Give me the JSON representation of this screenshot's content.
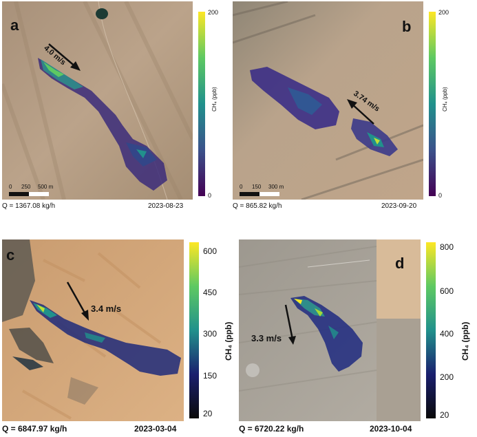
{
  "panels": [
    {
      "letter": "a",
      "q": "Q = 1367.08 kg/h",
      "date": "2023-08-23",
      "wind": "4.0 m/s",
      "scale": [
        "0",
        "250",
        "500 m"
      ],
      "cbar_ticks": [
        "200",
        "0"
      ],
      "cbar_label": "CH₄ (ppb)"
    },
    {
      "letter": "b",
      "q": "Q = 865.82 kg/h",
      "date": "2023-09-20",
      "wind": "3.74 m/s",
      "scale": [
        "0",
        "150",
        "300 m"
      ],
      "cbar_ticks": [
        "200",
        "0"
      ],
      "cbar_label": "CH₄ (ppb)"
    },
    {
      "letter": "c",
      "q": "Q = 6847.97 kg/h",
      "date": "2023-03-04",
      "wind": "3.4 m/s",
      "cbar_ticks": [
        "600",
        "450",
        "300",
        "150",
        "20"
      ],
      "cbar_label": "CH₄ (ppb)"
    },
    {
      "letter": "d",
      "q": "Q = 6720.22 kg/h",
      "date": "2023-10-04",
      "wind": "3.3 m/s",
      "cbar_ticks": [
        "800",
        "600",
        "400",
        "200",
        "20"
      ],
      "cbar_label": "CH₄ (ppb)"
    }
  ],
  "colors": {
    "viridis": [
      "#440154",
      "#3b528b",
      "#21918c",
      "#5ec962",
      "#fde725"
    ],
    "dark_viridis": [
      "#0a0a0a",
      "#1a1f6e",
      "#21918c",
      "#5ec962",
      "#fde725"
    ],
    "terrain_a": "#b39b7f",
    "terrain_b": "#b79f85",
    "desert_c": "#d4a77a",
    "terrain_d": "#a8a39c"
  }
}
